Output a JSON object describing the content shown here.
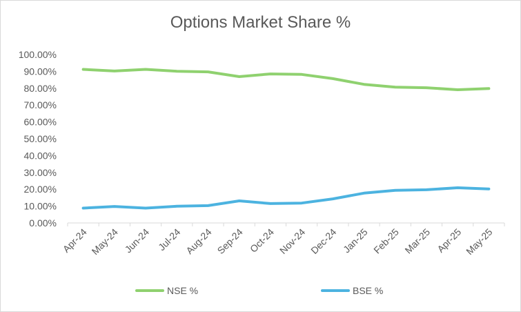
{
  "chart_data": {
    "type": "line",
    "title": "Options Market Share %",
    "xlabel": "",
    "ylabel": "",
    "categories": [
      "Apr-24",
      "May-24",
      "Jun-24",
      "Jul-24",
      "Aug-24",
      "Sep-24",
      "Oct-24",
      "Nov-24",
      "Dec-24",
      "Jan-25",
      "Feb-25",
      "Mar-25",
      "Apr-25",
      "May-25"
    ],
    "y_ticks": [
      "0.00%",
      "10.00%",
      "20.00%",
      "30.00%",
      "40.00%",
      "50.00%",
      "60.00%",
      "70.00%",
      "80.00%",
      "90.00%",
      "100.00%"
    ],
    "ylim": [
      0,
      100
    ],
    "grid": false,
    "legend_position": "bottom",
    "series": [
      {
        "name": "NSE %",
        "color": "#8fd16f",
        "values": [
          91.2,
          90.2,
          91.2,
          90.1,
          89.7,
          86.9,
          88.5,
          88.2,
          85.7,
          82.3,
          80.6,
          80.3,
          79.1,
          79.8
        ]
      },
      {
        "name": "BSE %",
        "color": "#4cb3e0",
        "values": [
          8.8,
          9.8,
          8.8,
          9.9,
          10.3,
          13.1,
          11.5,
          11.8,
          14.3,
          17.7,
          19.4,
          19.7,
          20.9,
          20.2
        ]
      }
    ]
  }
}
